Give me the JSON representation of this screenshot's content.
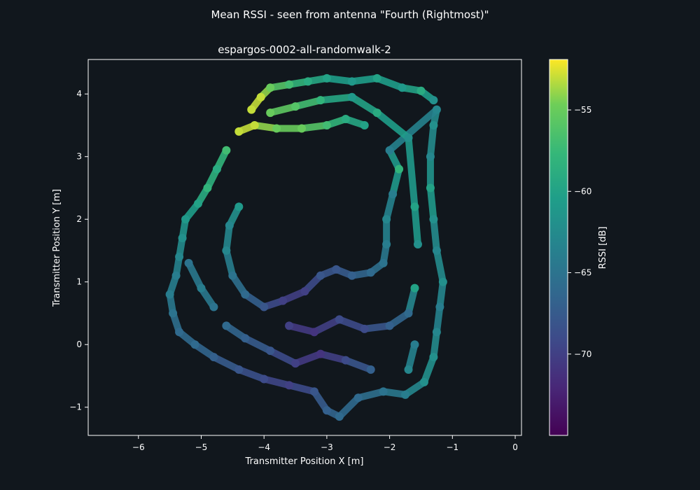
{
  "suptitle": "Mean RSSI - seen from antenna \"Fourth (Rightmost)\"",
  "colors": {
    "background": "#11171d",
    "axes_edge": "#ffffff",
    "text": "#ffffff",
    "colormap": "viridis"
  },
  "chart_data": {
    "type": "scatter",
    "title": "espargos-0002-all-randomwalk-2",
    "xlabel": "Transmitter Position X [m]",
    "ylabel": "Transmitter Position Y [m]",
    "xlim": [
      -6.8,
      0.1
    ],
    "ylim": [
      -1.45,
      4.55
    ],
    "xticks": [
      -6,
      -5,
      -4,
      -3,
      -2,
      -1,
      0
    ],
    "yticks": [
      -1,
      0,
      1,
      2,
      3,
      4
    ],
    "grid": false,
    "colorbar": {
      "label": "RSSI [dB]",
      "range": [
        -75,
        -51.9
      ],
      "ticks": [
        -55,
        -60,
        -65,
        -70
      ],
      "tick_labels": [
        "−55",
        "−60",
        "−65",
        "−70"
      ]
    },
    "series": [
      {
        "values_description_free": true,
        "points": [
          [
            -4.2,
            3.75,
            -53
          ],
          [
            -4.05,
            3.95,
            -53
          ],
          [
            -3.9,
            4.1,
            -55
          ],
          [
            -3.6,
            4.15,
            -57
          ],
          [
            -3.3,
            4.2,
            -59
          ],
          [
            -3.0,
            4.25,
            -60
          ],
          [
            -2.6,
            4.2,
            -61
          ],
          [
            -2.2,
            4.25,
            -60
          ],
          [
            -1.8,
            4.1,
            -61
          ],
          [
            -1.5,
            4.05,
            -59
          ],
          [
            -1.3,
            3.9,
            -62
          ],
          [
            -4.4,
            3.4,
            -53
          ],
          [
            -4.15,
            3.5,
            -53
          ],
          [
            -3.8,
            3.45,
            -55
          ],
          [
            -3.4,
            3.45,
            -55
          ],
          [
            -3.0,
            3.5,
            -57
          ],
          [
            -2.7,
            3.6,
            -59
          ],
          [
            -2.4,
            3.5,
            -60
          ],
          [
            -4.6,
            3.1,
            -57
          ],
          [
            -4.75,
            2.8,
            -59
          ],
          [
            -4.9,
            2.5,
            -58
          ],
          [
            -5.05,
            2.25,
            -60
          ],
          [
            -5.25,
            2.0,
            -61
          ],
          [
            -5.3,
            1.7,
            -62
          ],
          [
            -5.35,
            1.4,
            -63
          ],
          [
            -5.4,
            1.1,
            -64
          ],
          [
            -5.5,
            0.8,
            -64
          ],
          [
            -5.45,
            0.5,
            -65
          ],
          [
            -5.35,
            0.2,
            -66
          ],
          [
            -5.1,
            0.0,
            -66
          ],
          [
            -4.8,
            -0.2,
            -67
          ],
          [
            -4.4,
            -0.4,
            -68
          ],
          [
            -4.0,
            -0.55,
            -69
          ],
          [
            -3.6,
            -0.65,
            -70
          ],
          [
            -3.2,
            -0.75,
            -68
          ],
          [
            -3.0,
            -1.05,
            -67
          ],
          [
            -2.8,
            -1.15,
            -66
          ],
          [
            -2.5,
            -0.85,
            -66
          ],
          [
            -2.1,
            -0.75,
            -65
          ],
          [
            -1.75,
            -0.8,
            -64
          ],
          [
            -1.45,
            -0.6,
            -62
          ],
          [
            -1.3,
            -0.2,
            -62
          ],
          [
            -1.25,
            0.2,
            -63
          ],
          [
            -1.2,
            0.6,
            -64
          ],
          [
            -1.15,
            1.0,
            -62
          ],
          [
            -1.25,
            1.5,
            -63
          ],
          [
            -1.3,
            2.0,
            -62
          ],
          [
            -1.35,
            2.5,
            -60
          ],
          [
            -1.35,
            3.0,
            -63
          ],
          [
            -1.3,
            3.5,
            -62
          ],
          [
            -1.25,
            3.75,
            -63
          ],
          [
            -2.0,
            3.1,
            -64
          ],
          [
            -1.85,
            2.8,
            -58
          ],
          [
            -1.95,
            2.4,
            -64
          ],
          [
            -2.05,
            2.0,
            -63
          ],
          [
            -2.05,
            1.6,
            -64
          ],
          [
            -2.1,
            1.3,
            -65
          ],
          [
            -2.3,
            1.15,
            -66
          ],
          [
            -2.6,
            1.1,
            -67
          ],
          [
            -2.85,
            1.2,
            -68
          ],
          [
            -3.1,
            1.1,
            -68
          ],
          [
            -3.35,
            0.85,
            -70
          ],
          [
            -3.7,
            0.7,
            -70
          ],
          [
            -4.0,
            0.6,
            -68
          ],
          [
            -4.3,
            0.8,
            -66
          ],
          [
            -4.5,
            1.1,
            -65
          ],
          [
            -4.6,
            1.5,
            -63
          ],
          [
            -4.55,
            1.9,
            -63
          ],
          [
            -4.4,
            2.2,
            -61
          ],
          [
            -3.6,
            0.3,
            -70
          ],
          [
            -3.2,
            0.2,
            -71
          ],
          [
            -2.8,
            0.4,
            -69
          ],
          [
            -2.4,
            0.25,
            -69
          ],
          [
            -2.0,
            0.3,
            -67
          ],
          [
            -1.7,
            0.5,
            -66
          ],
          [
            -1.6,
            0.9,
            -60
          ],
          [
            -4.8,
            0.6,
            -65
          ],
          [
            -5.0,
            0.9,
            -64
          ],
          [
            -5.2,
            1.3,
            -65
          ],
          [
            -2.3,
            -0.4,
            -67
          ],
          [
            -2.7,
            -0.25,
            -69
          ],
          [
            -3.1,
            -0.15,
            -71
          ],
          [
            -3.5,
            -0.3,
            -70
          ],
          [
            -3.9,
            -0.1,
            -68
          ],
          [
            -4.3,
            0.1,
            -67
          ],
          [
            -4.6,
            0.3,
            -66
          ],
          [
            -1.7,
            -0.4,
            -63
          ],
          [
            -1.6,
            0.0,
            -64
          ],
          [
            -1.55,
            1.6,
            -62
          ],
          [
            -1.6,
            2.2,
            -60
          ],
          [
            -1.7,
            3.3,
            -62
          ],
          [
            -2.2,
            3.7,
            -59
          ],
          [
            -2.6,
            3.95,
            -61
          ],
          [
            -3.1,
            3.9,
            -58
          ],
          [
            -3.5,
            3.8,
            -56
          ],
          [
            -3.9,
            3.7,
            -55
          ]
        ]
      }
    ]
  }
}
